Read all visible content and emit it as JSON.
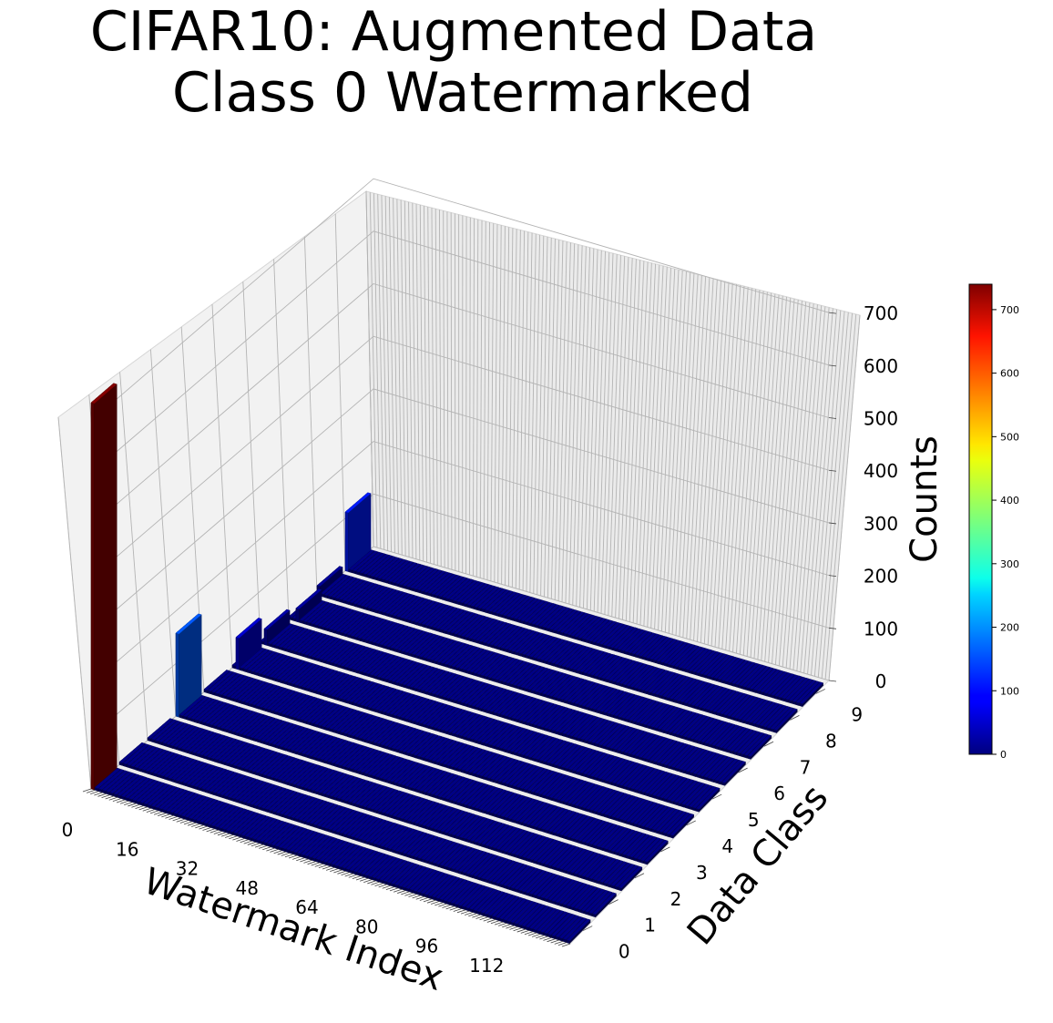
{
  "chart_data": {
    "type": "bar3d",
    "title_lines": [
      "CIFAR10: Augmented Data",
      "Class 0 Watermarked"
    ],
    "xlabel": "Watermark Index",
    "ylabel": "Data Class",
    "zlabel": "Counts",
    "x_range": [
      0,
      127
    ],
    "y_range": [
      0,
      9
    ],
    "zlim": [
      0,
      740
    ],
    "x_ticks": [
      0,
      16,
      32,
      48,
      64,
      80,
      96,
      112
    ],
    "y_ticks": [
      0,
      1,
      2,
      3,
      4,
      5,
      6,
      7,
      8,
      9
    ],
    "z_ticks": [
      0,
      100,
      200,
      300,
      400,
      500,
      600,
      700
    ],
    "colormap": "jet",
    "colorbar_ticks": [
      0,
      100,
      200,
      300,
      400,
      500,
      600,
      700
    ],
    "background_count": 5,
    "bars": [
      {
        "watermark_index": 0,
        "data_class": 0,
        "count": 735
      },
      {
        "watermark_index": 0,
        "data_class": 3,
        "count": 158
      },
      {
        "watermark_index": 1,
        "data_class": 5,
        "count": 60
      },
      {
        "watermark_index": 1,
        "data_class": 6,
        "count": 30
      },
      {
        "watermark_index": 2,
        "data_class": 7,
        "count": 25
      },
      {
        "watermark_index": 0,
        "data_class": 8,
        "count": 18
      },
      {
        "watermark_index": 0,
        "data_class": 9,
        "count": 112
      }
    ]
  }
}
